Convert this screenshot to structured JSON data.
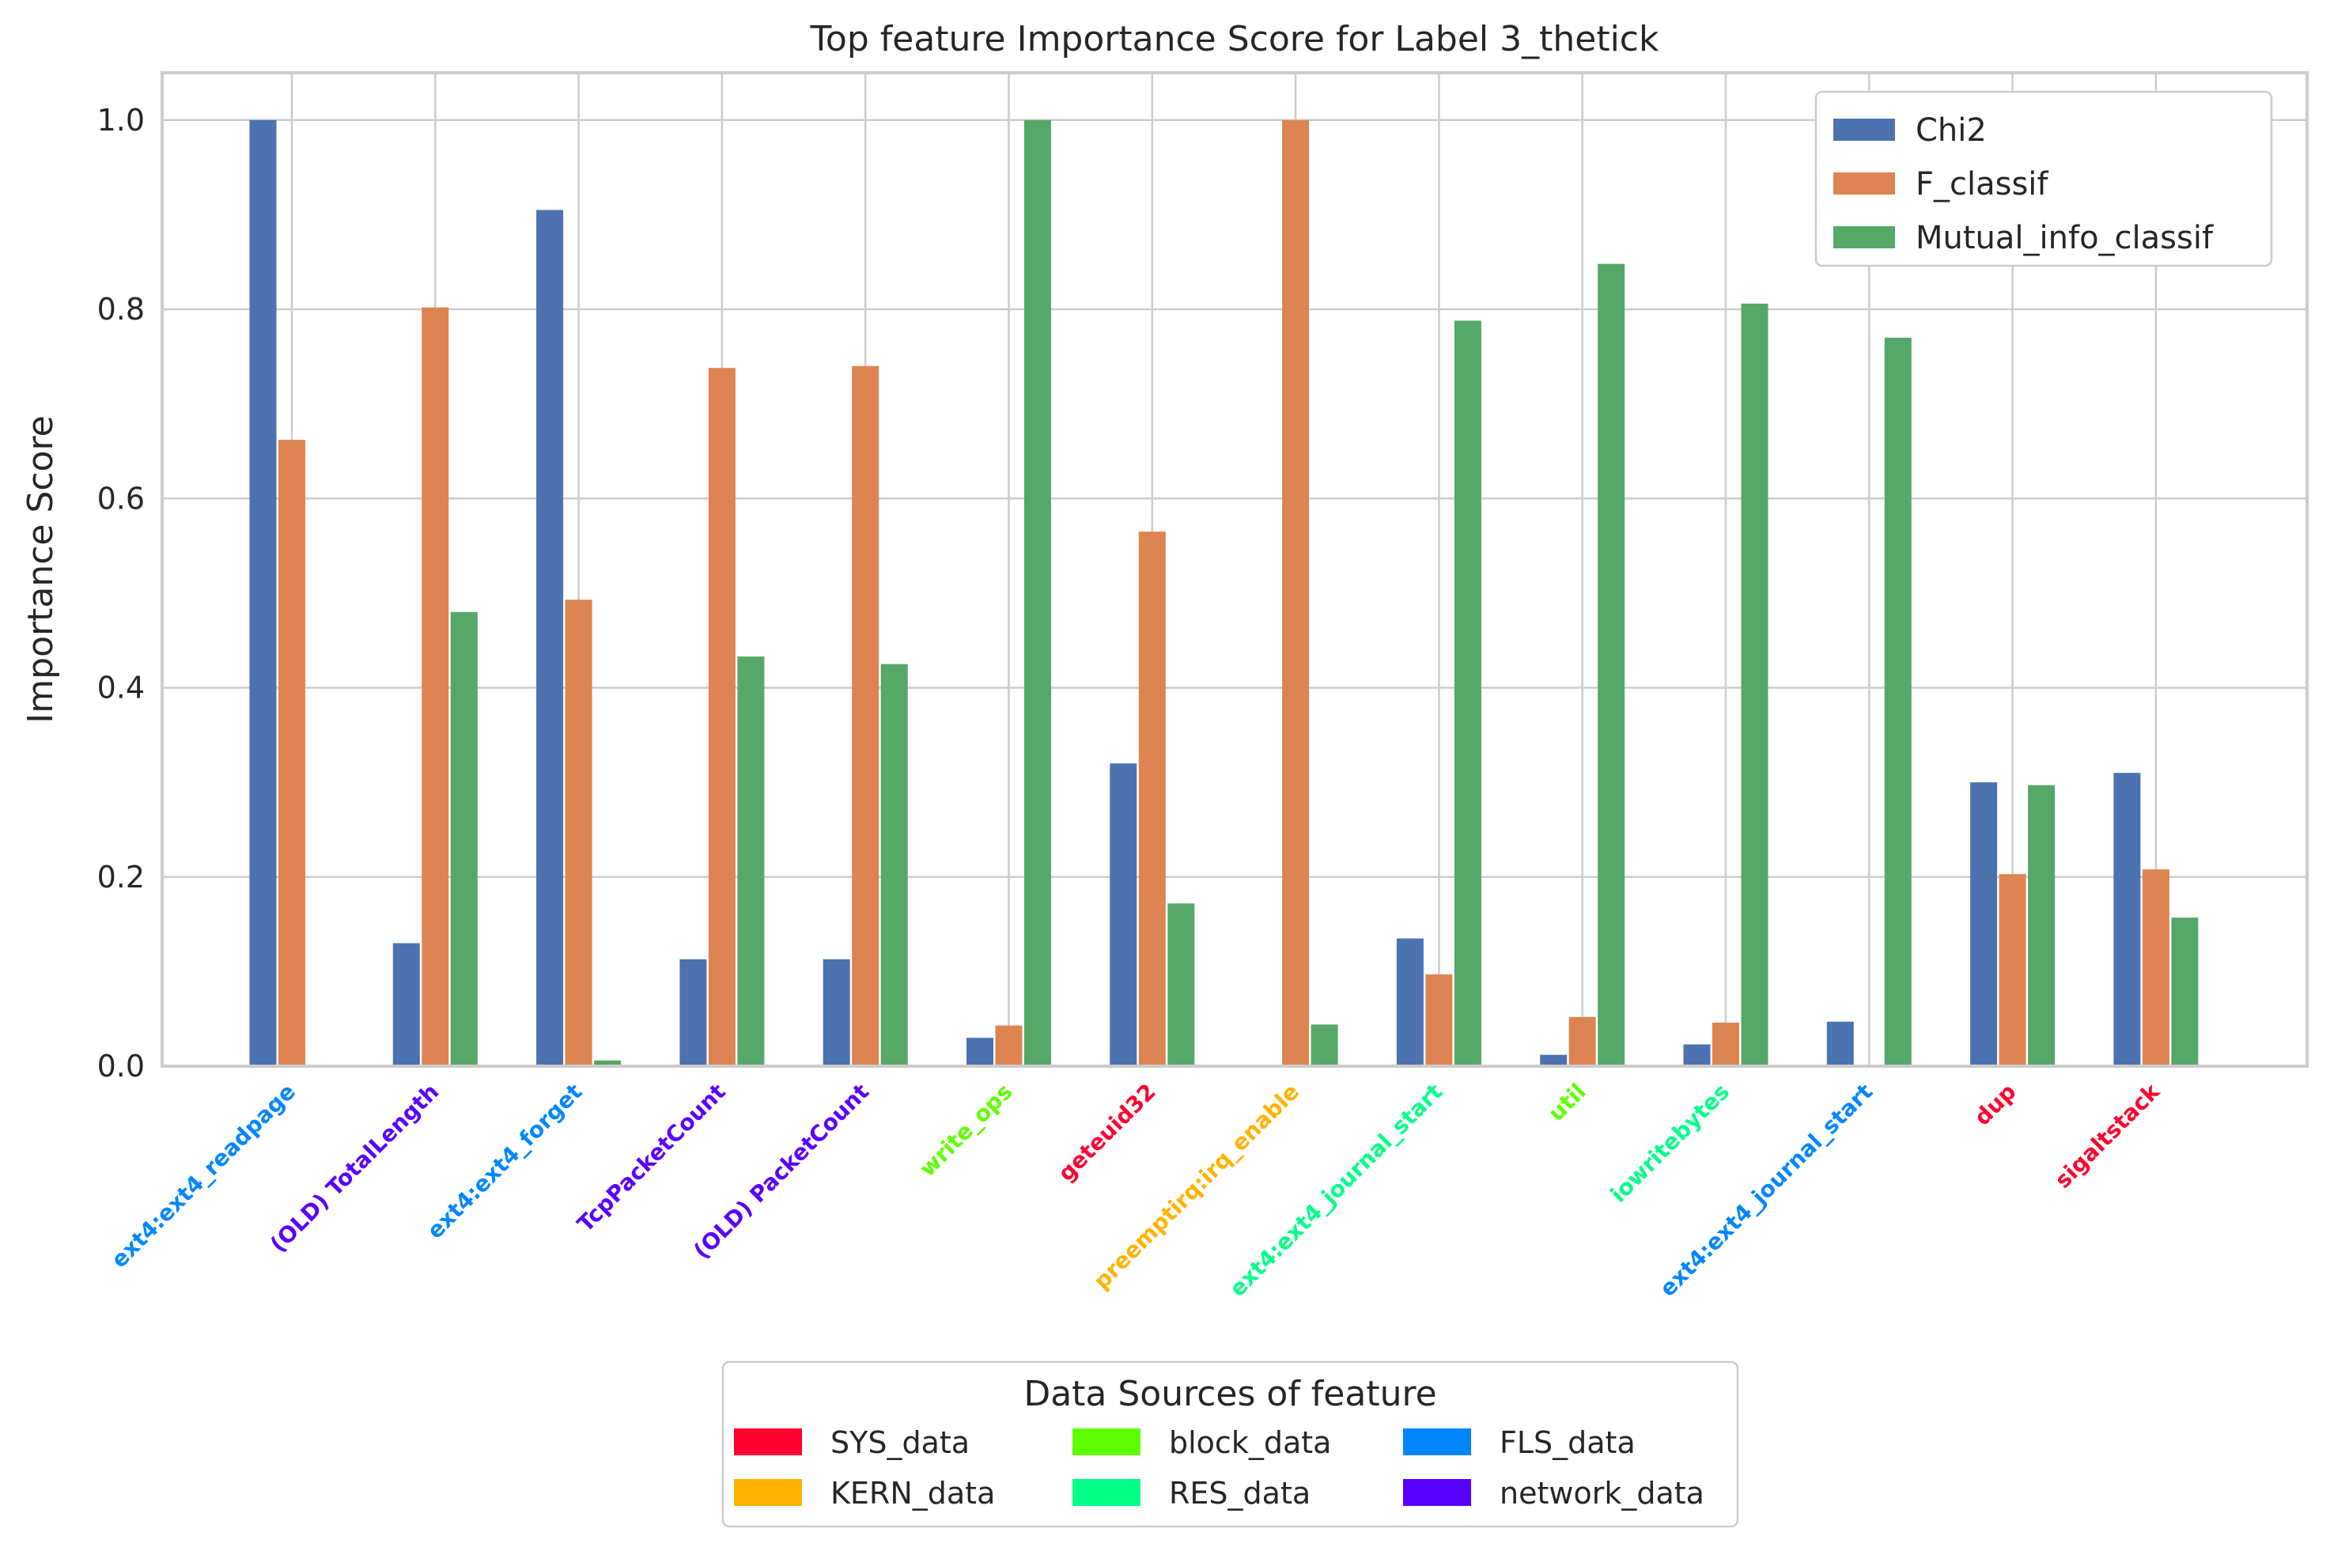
{
  "chart_data": {
    "type": "bar",
    "title": "Top feature Importance Score for Label 3_thetick",
    "xlabel": "",
    "ylabel": "Importance Score",
    "ylim": [
      0,
      1.05
    ],
    "yticks": [
      "0.0",
      "0.2",
      "0.4",
      "0.6",
      "0.8",
      "1.0"
    ],
    "grid": true,
    "legend_placement": "top-right",
    "categories": [
      "ext4:ext4_readpage",
      "(OLD) TotalLength",
      "ext4:ext4_forget",
      "TcpPacketCount",
      "(OLD) PacketCount",
      "write_ops",
      "geteuid32",
      "preemptirq:irq_enable",
      "ext4:ext4_journal_start",
      "util",
      "iowritebytes",
      "ext4:ext4_journal_start",
      "dup",
      "sigaltstack"
    ],
    "category_sources": [
      "FLS_data",
      "network_data",
      "FLS_data",
      "network_data",
      "network_data",
      "block_data",
      "SYS_data",
      "KERN_data",
      "RES_data",
      "block_data",
      "RES_data",
      "FLS_data",
      "SYS_data",
      "SYS_data"
    ],
    "series": [
      {
        "name": "Chi2",
        "color": "#4c72b0",
        "values": [
          1.0,
          0.13,
          0.905,
          0.113,
          0.113,
          0.03,
          0.32,
          0.0,
          0.135,
          0.012,
          0.023,
          0.047,
          0.3,
          0.31
        ]
      },
      {
        "name": "F_classif",
        "color": "#dd8452",
        "values": [
          0.662,
          0.802,
          0.493,
          0.738,
          0.74,
          0.043,
          0.565,
          1.0,
          0.097,
          0.052,
          0.046,
          0.0,
          0.203,
          0.208
        ]
      },
      {
        "name": "Mutual_info_classif",
        "color": "#55a868",
        "values": [
          0.0,
          0.48,
          0.006,
          0.433,
          0.425,
          1.0,
          0.172,
          0.044,
          0.788,
          0.848,
          0.806,
          0.77,
          0.297,
          0.157
        ]
      }
    ],
    "source_legend": {
      "title": "Data Sources of feature",
      "entries": [
        {
          "name": "SYS_data",
          "color": "#ff0030"
        },
        {
          "name": "KERN_data",
          "color": "#ffb300"
        },
        {
          "name": "block_data",
          "color": "#5eff00"
        },
        {
          "name": "RES_data",
          "color": "#00ff86"
        },
        {
          "name": "FLS_data",
          "color": "#0087ff"
        },
        {
          "name": "network_data",
          "color": "#5a00ff"
        }
      ]
    }
  }
}
